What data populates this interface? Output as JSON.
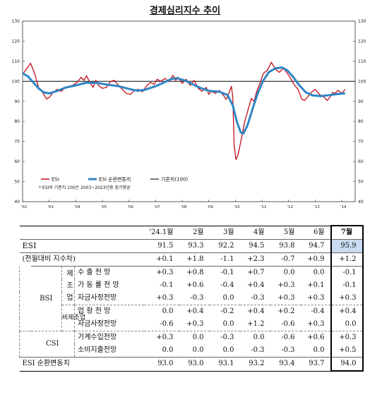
{
  "chart_data": {
    "type": "line",
    "title": "경제심리지수 추이",
    "yticks": [
      40,
      50,
      60,
      70,
      80,
      90,
      100,
      110,
      120,
      130
    ],
    "ylim": [
      40,
      130
    ],
    "xticks": [
      "'02",
      "'03",
      "'04",
      "'05",
      "'06",
      "'07",
      "'08",
      "'09",
      "'10",
      "'11",
      "'12",
      "'13",
      "'14"
    ],
    "xlim": [
      0,
      12.5
    ],
    "legend": [
      "ESI",
      "ESI 순환변동치",
      "기준치(100)"
    ],
    "note": "* ESI의 기준치 100은 2003~2023년중 장기평균",
    "colors": {
      "esi": "#c0101a",
      "cycle": "#2f86c4",
      "base": "#222222"
    },
    "series": [
      {
        "name": "ESI",
        "points": [
          [
            0.0,
            103.5
          ],
          [
            0.15,
            106.2
          ],
          [
            0.3,
            109.0
          ],
          [
            0.45,
            104.0
          ],
          [
            0.6,
            97.0
          ],
          [
            0.75,
            94.5
          ],
          [
            0.9,
            91.2
          ],
          [
            1.0,
            92.0
          ],
          [
            1.15,
            94.5
          ],
          [
            1.3,
            96.0
          ],
          [
            1.45,
            95.0
          ],
          [
            1.6,
            96.8
          ],
          [
            1.75,
            97.5
          ],
          [
            1.9,
            98.2
          ],
          [
            2.05,
            99.5
          ],
          [
            2.2,
            102.0
          ],
          [
            2.3,
            100.5
          ],
          [
            2.4,
            102.8
          ],
          [
            2.55,
            99.0
          ],
          [
            2.65,
            97.0
          ],
          [
            2.75,
            100.5
          ],
          [
            2.85,
            98.0
          ],
          [
            3.0,
            96.5
          ],
          [
            3.15,
            97.0
          ],
          [
            3.3,
            99.8
          ],
          [
            3.45,
            100.5
          ],
          [
            3.6,
            98.0
          ],
          [
            3.75,
            96.0
          ],
          [
            3.9,
            94.0
          ],
          [
            4.05,
            93.5
          ],
          [
            4.2,
            95.5
          ],
          [
            4.35,
            96.0
          ],
          [
            4.5,
            94.8
          ],
          [
            4.65,
            97.5
          ],
          [
            4.8,
            99.5
          ],
          [
            4.95,
            98.5
          ],
          [
            5.05,
            101.0
          ],
          [
            5.2,
            100.0
          ],
          [
            5.35,
            101.5
          ],
          [
            5.5,
            99.8
          ],
          [
            5.65,
            103.0
          ],
          [
            5.75,
            100.5
          ],
          [
            5.85,
            102.0
          ],
          [
            6.0,
            99.0
          ],
          [
            6.15,
            101.0
          ],
          [
            6.3,
            98.0
          ],
          [
            6.45,
            100.5
          ],
          [
            6.6,
            96.5
          ],
          [
            6.75,
            95.0
          ],
          [
            6.9,
            97.0
          ],
          [
            7.0,
            93.5
          ],
          [
            7.1,
            95.0
          ],
          [
            7.25,
            94.0
          ],
          [
            7.4,
            95.5
          ],
          [
            7.55,
            93.0
          ],
          [
            7.65,
            91.0
          ],
          [
            7.75,
            94.0
          ],
          [
            7.85,
            97.5
          ],
          [
            7.9,
            92.0
          ],
          [
            7.95,
            68.0
          ],
          [
            8.02,
            61.0
          ],
          [
            8.1,
            63.5
          ],
          [
            8.2,
            70.0
          ],
          [
            8.35,
            80.0
          ],
          [
            8.5,
            87.0
          ],
          [
            8.6,
            91.5
          ],
          [
            8.7,
            90.0
          ],
          [
            8.8,
            95.0
          ],
          [
            8.95,
            100.0
          ],
          [
            9.05,
            104.0
          ],
          [
            9.2,
            105.5
          ],
          [
            9.35,
            109.5
          ],
          [
            9.5,
            106.0
          ],
          [
            9.65,
            104.5
          ],
          [
            9.8,
            106.5
          ],
          [
            9.95,
            104.0
          ],
          [
            10.05,
            102.0
          ],
          [
            10.2,
            98.5
          ],
          [
            10.35,
            96.0
          ],
          [
            10.5,
            91.0
          ],
          [
            10.6,
            90.5
          ],
          [
            10.7,
            92.0
          ],
          [
            10.85,
            94.5
          ],
          [
            11.0,
            96.0
          ],
          [
            11.15,
            93.5
          ],
          [
            11.3,
            92.5
          ],
          [
            11.45,
            90.5
          ],
          [
            11.55,
            92.0
          ],
          [
            11.65,
            94.5
          ],
          [
            11.75,
            94.0
          ],
          [
            11.85,
            95.5
          ],
          [
            12.0,
            94.0
          ],
          [
            12.12,
            96.0
          ]
        ]
      },
      {
        "name": "ESI 순환변동치",
        "points": [
          [
            0.0,
            104.0
          ],
          [
            0.2,
            102.5
          ],
          [
            0.4,
            99.5
          ],
          [
            0.6,
            96.5
          ],
          [
            0.8,
            94.5
          ],
          [
            1.0,
            94.0
          ],
          [
            1.3,
            95.2
          ],
          [
            1.6,
            96.8
          ],
          [
            2.0,
            98.0
          ],
          [
            2.4,
            99.3
          ],
          [
            2.8,
            99.2
          ],
          [
            3.2,
            98.3
          ],
          [
            3.6,
            97.6
          ],
          [
            4.0,
            96.2
          ],
          [
            4.3,
            95.3
          ],
          [
            4.6,
            95.8
          ],
          [
            5.0,
            97.6
          ],
          [
            5.3,
            99.3
          ],
          [
            5.6,
            101.2
          ],
          [
            5.8,
            101.6
          ],
          [
            6.1,
            100.4
          ],
          [
            6.4,
            98.5
          ],
          [
            6.7,
            96.6
          ],
          [
            7.0,
            95.3
          ],
          [
            7.4,
            94.8
          ],
          [
            7.7,
            93.2
          ],
          [
            7.9,
            88.0
          ],
          [
            8.05,
            80.0
          ],
          [
            8.2,
            74.5
          ],
          [
            8.3,
            74.0
          ],
          [
            8.45,
            78.0
          ],
          [
            8.65,
            86.5
          ],
          [
            8.85,
            94.5
          ],
          [
            9.05,
            100.5
          ],
          [
            9.25,
            104.5
          ],
          [
            9.5,
            106.5
          ],
          [
            9.75,
            106.9
          ],
          [
            9.95,
            105.5
          ],
          [
            10.15,
            102.5
          ],
          [
            10.4,
            98.0
          ],
          [
            10.65,
            94.5
          ],
          [
            10.9,
            93.0
          ],
          [
            11.2,
            92.6
          ],
          [
            11.5,
            93.1
          ],
          [
            11.8,
            93.6
          ],
          [
            12.12,
            94.0
          ]
        ]
      },
      {
        "name": "기준치(100)",
        "points": [
          [
            0,
            100
          ],
          [
            12.5,
            100
          ]
        ]
      }
    ]
  },
  "table": {
    "header": [
      "'24.1월",
      "2월",
      "3월",
      "4월",
      "5월",
      "6월",
      "7월"
    ],
    "esi": {
      "label": "ESI",
      "values": [
        "91.5",
        "93.3",
        "92.2",
        "94.5",
        "93.8",
        "94.7",
        "95.9"
      ]
    },
    "diff": {
      "label": "(전월대비 지수차)",
      "values": [
        "+0.1",
        "+1.8",
        "-1.1",
        "+2.3",
        "-0.7",
        "+0.9",
        "+1.2"
      ]
    },
    "bsi": {
      "label": "BSI",
      "mfg": "제 조 업",
      "nonmfg": "비제조업"
    },
    "csi": {
      "label": "CSI"
    },
    "rows": [
      {
        "label": "수 출 전 망",
        "values": [
          "+0.3",
          "+0.8",
          "-0.1",
          "+0.7",
          "0.0",
          "0.0",
          "-0.1"
        ]
      },
      {
        "label": "가 동 률 전 망",
        "values": [
          "-0.1",
          "+0.6",
          "-0.4",
          "+0.4",
          "+0.3",
          "+0.1",
          "-0.1"
        ]
      },
      {
        "label": "자금사정전망",
        "values": [
          "+0.3",
          "-0.3",
          "0.0",
          "-0.3",
          "+0.3",
          "+0.3",
          "+0.3"
        ]
      },
      {
        "label": "업 황 전 망",
        "values": [
          "0.0",
          "+0.4",
          "-0.2",
          "+0.4",
          "+0.2",
          "-0.4",
          "+0.4"
        ]
      },
      {
        "label": "자금사정전망",
        "values": [
          "-0.6",
          "+0.3",
          "0.0",
          "+1.2",
          "-0.6",
          "+0.3",
          "0.0"
        ]
      },
      {
        "label": "가계수입전망",
        "values": [
          "+0.3",
          "0.0",
          "-0.3",
          "0.0",
          "-0.6",
          "+0.6",
          "+0.3"
        ]
      },
      {
        "label": "소비지출전망",
        "values": [
          "0.0",
          "0.0",
          "0.0",
          "-0.3",
          "-0.3",
          "0.0",
          "+0.5"
        ]
      }
    ],
    "cycle": {
      "label": "ESI 순환변동치",
      "values": [
        "93.0",
        "93.0",
        "93.1",
        "93.2",
        "93.4",
        "93.7",
        "94.0"
      ]
    }
  }
}
